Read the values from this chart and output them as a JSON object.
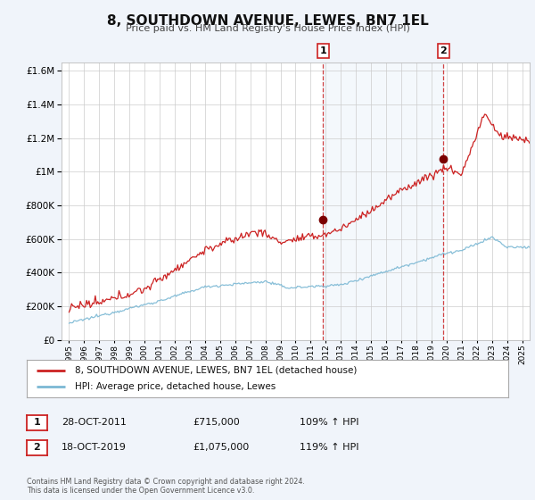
{
  "title": "8, SOUTHDOWN AVENUE, LEWES, BN7 1EL",
  "subtitle": "Price paid vs. HM Land Registry's House Price Index (HPI)",
  "legend_line1": "8, SOUTHDOWN AVENUE, LEWES, BN7 1EL (detached house)",
  "legend_line2": "HPI: Average price, detached house, Lewes",
  "footer1": "Contains HM Land Registry data © Crown copyright and database right 2024.",
  "footer2": "This data is licensed under the Open Government Licence v3.0.",
  "annotation1_label": "1",
  "annotation1_date": "28-OCT-2011",
  "annotation1_price": "£715,000",
  "annotation1_hpi": "109% ↑ HPI",
  "annotation2_label": "2",
  "annotation2_date": "18-OCT-2019",
  "annotation2_price": "£1,075,000",
  "annotation2_hpi": "119% ↑ HPI",
  "sale1_year": 2011.82,
  "sale1_value": 715000,
  "sale2_year": 2019.8,
  "sale2_value": 1075000,
  "hpi_color": "#7bb8d4",
  "price_color": "#cc2222",
  "sale_dot_color": "#7a0000",
  "vline_color": "#cc2222",
  "background_color": "#f0f4fa",
  "plot_bg": "#ffffff",
  "grid_color": "#cccccc",
  "ylim_max": 1650000,
  "xlim_min": 1994.5,
  "xlim_max": 2025.5
}
